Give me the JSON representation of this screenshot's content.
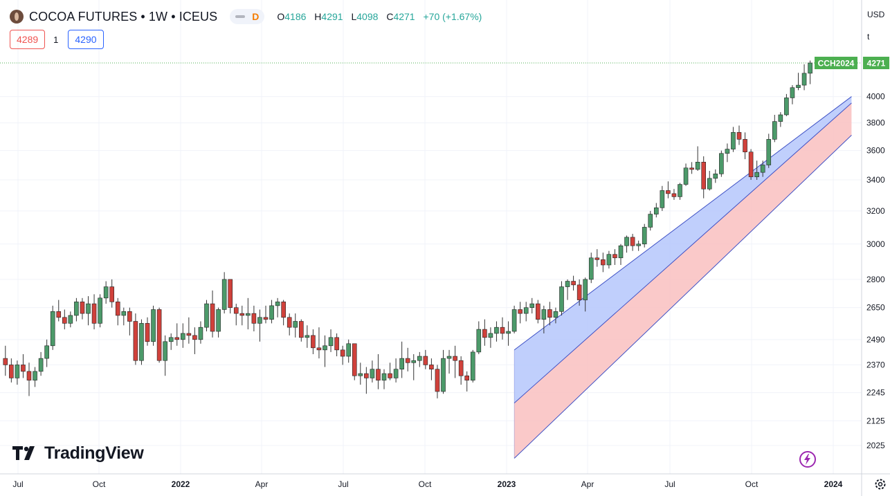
{
  "header": {
    "title": "COCOA FUTURES • 1W • ICEUS",
    "badge": "D",
    "ohlc": [
      {
        "k": "O",
        "v": "4186"
      },
      {
        "k": "H",
        "v": "4291"
      },
      {
        "k": "L",
        "v": "4098"
      },
      {
        "k": "C",
        "v": "4271"
      }
    ],
    "change": "+70 (+1.67%)"
  },
  "quote": {
    "sell": "4289",
    "qty": "1",
    "buy": "4290"
  },
  "axis_currency": "USD",
  "axis_unit": "t",
  "branding": "TradingView",
  "icons": [
    "cocoa-symbol-icon",
    "eye-toggle-icon",
    "tradingview-logo-icon",
    "lightning-icon",
    "gear-icon"
  ],
  "colors": {
    "up": "#26a69a",
    "down": "#ef5350",
    "channel_upper_fill": "#b5c7fc",
    "channel_lower_fill": "#f9c0c0",
    "channel_line": "#3f51c5",
    "last_price": "#4caf50"
  },
  "chart_data": {
    "type": "candlestick",
    "symbol": "CCH2024",
    "last_price": 4271,
    "y_ticks": [
      2025,
      2125,
      2245,
      2370,
      2490,
      2650,
      2800,
      3000,
      3200,
      3400,
      3600,
      3800,
      4000
    ],
    "x_ticks": [
      "Jul",
      "Oct",
      "2022",
      "Apr",
      "Jul",
      "Oct",
      "2023",
      "Apr",
      "Jul",
      "Oct",
      "2024"
    ],
    "ylim": [
      1960,
      4400
    ],
    "y_scale": "log",
    "grid": true,
    "candles": [
      [
        2400,
        2460,
        2320,
        2370
      ],
      [
        2370,
        2400,
        2290,
        2310
      ],
      [
        2310,
        2390,
        2280,
        2370
      ],
      [
        2370,
        2420,
        2310,
        2340
      ],
      [
        2340,
        2380,
        2230,
        2300
      ],
      [
        2300,
        2360,
        2270,
        2340
      ],
      [
        2340,
        2430,
        2320,
        2400
      ],
      [
        2400,
        2490,
        2360,
        2460
      ],
      [
        2460,
        2660,
        2440,
        2630
      ],
      [
        2630,
        2690,
        2580,
        2600
      ],
      [
        2600,
        2640,
        2540,
        2570
      ],
      [
        2570,
        2630,
        2550,
        2610
      ],
      [
        2610,
        2700,
        2580,
        2680
      ],
      [
        2680,
        2700,
        2590,
        2620
      ],
      [
        2620,
        2710,
        2560,
        2670
      ],
      [
        2670,
        2720,
        2540,
        2570
      ],
      [
        2570,
        2720,
        2550,
        2700
      ],
      [
        2700,
        2790,
        2670,
        2760
      ],
      [
        2760,
        2800,
        2650,
        2680
      ],
      [
        2680,
        2700,
        2560,
        2610
      ],
      [
        2610,
        2650,
        2560,
        2630
      ],
      [
        2630,
        2650,
        2510,
        2580
      ],
      [
        2580,
        2620,
        2370,
        2390
      ],
      [
        2390,
        2590,
        2370,
        2570
      ],
      [
        2570,
        2600,
        2460,
        2480
      ],
      [
        2480,
        2660,
        2460,
        2640
      ],
      [
        2640,
        2650,
        2380,
        2390
      ],
      [
        2390,
        2510,
        2320,
        2480
      ],
      [
        2480,
        2520,
        2440,
        2500
      ],
      [
        2500,
        2570,
        2460,
        2490
      ],
      [
        2490,
        2570,
        2450,
        2520
      ],
      [
        2520,
        2600,
        2470,
        2510
      ],
      [
        2510,
        2550,
        2420,
        2490
      ],
      [
        2490,
        2580,
        2470,
        2550
      ],
      [
        2550,
        2690,
        2530,
        2670
      ],
      [
        2670,
        2740,
        2500,
        2530
      ],
      [
        2530,
        2650,
        2500,
        2640
      ],
      [
        2640,
        2840,
        2620,
        2800
      ],
      [
        2800,
        2800,
        2620,
        2650
      ],
      [
        2650,
        2670,
        2560,
        2620
      ],
      [
        2620,
        2660,
        2560,
        2610
      ],
      [
        2610,
        2700,
        2540,
        2620
      ],
      [
        2620,
        2660,
        2530,
        2570
      ],
      [
        2570,
        2640,
        2480,
        2600
      ],
      [
        2600,
        2660,
        2570,
        2590
      ],
      [
        2590,
        2690,
        2570,
        2660
      ],
      [
        2660,
        2700,
        2600,
        2680
      ],
      [
        2680,
        2690,
        2560,
        2600
      ],
      [
        2600,
        2620,
        2510,
        2550
      ],
      [
        2550,
        2620,
        2500,
        2580
      ],
      [
        2580,
        2590,
        2480,
        2500
      ],
      [
        2500,
        2560,
        2450,
        2510
      ],
      [
        2510,
        2540,
        2420,
        2450
      ],
      [
        2450,
        2550,
        2400,
        2440
      ],
      [
        2440,
        2510,
        2360,
        2460
      ],
      [
        2460,
        2540,
        2430,
        2500
      ],
      [
        2500,
        2520,
        2410,
        2440
      ],
      [
        2440,
        2460,
        2370,
        2410
      ],
      [
        2410,
        2490,
        2380,
        2470
      ],
      [
        2470,
        2470,
        2300,
        2320
      ],
      [
        2320,
        2380,
        2280,
        2330
      ],
      [
        2330,
        2360,
        2240,
        2310
      ],
      [
        2310,
        2390,
        2290,
        2350
      ],
      [
        2350,
        2420,
        2260,
        2300
      ],
      [
        2300,
        2350,
        2260,
        2330
      ],
      [
        2330,
        2380,
        2300,
        2310
      ],
      [
        2310,
        2400,
        2290,
        2350
      ],
      [
        2350,
        2480,
        2310,
        2400
      ],
      [
        2400,
        2450,
        2340,
        2380
      ],
      [
        2380,
        2420,
        2300,
        2390
      ],
      [
        2390,
        2430,
        2360,
        2410
      ],
      [
        2410,
        2440,
        2350,
        2370
      ],
      [
        2370,
        2400,
        2300,
        2350
      ],
      [
        2350,
        2370,
        2220,
        2250
      ],
      [
        2250,
        2440,
        2240,
        2400
      ],
      [
        2400,
        2440,
        2330,
        2410
      ],
      [
        2410,
        2460,
        2310,
        2390
      ],
      [
        2390,
        2410,
        2280,
        2320
      ],
      [
        2320,
        2340,
        2250,
        2300
      ],
      [
        2300,
        2440,
        2290,
        2430
      ],
      [
        2430,
        2580,
        2420,
        2540
      ],
      [
        2540,
        2590,
        2460,
        2500
      ],
      [
        2500,
        2550,
        2450,
        2520
      ],
      [
        2520,
        2580,
        2480,
        2550
      ],
      [
        2550,
        2600,
        2490,
        2520
      ],
      [
        2520,
        2580,
        2460,
        2530
      ],
      [
        2530,
        2660,
        2520,
        2640
      ],
      [
        2640,
        2680,
        2570,
        2620
      ],
      [
        2620,
        2680,
        2580,
        2650
      ],
      [
        2650,
        2700,
        2620,
        2670
      ],
      [
        2670,
        2690,
        2570,
        2590
      ],
      [
        2590,
        2660,
        2520,
        2640
      ],
      [
        2640,
        2680,
        2560,
        2600
      ],
      [
        2600,
        2650,
        2570,
        2630
      ],
      [
        2630,
        2790,
        2610,
        2760
      ],
      [
        2760,
        2800,
        2690,
        2790
      ],
      [
        2790,
        2820,
        2740,
        2770
      ],
      [
        2770,
        2800,
        2660,
        2690
      ],
      [
        2690,
        2810,
        2630,
        2800
      ],
      [
        2800,
        2950,
        2780,
        2920
      ],
      [
        2920,
        2970,
        2870,
        2910
      ],
      [
        2910,
        2950,
        2840,
        2880
      ],
      [
        2880,
        2960,
        2860,
        2940
      ],
      [
        2940,
        2970,
        2880,
        2920
      ],
      [
        2920,
        3000,
        2880,
        2990
      ],
      [
        2990,
        3050,
        2950,
        3040
      ],
      [
        3040,
        3060,
        2960,
        2990
      ],
      [
        2990,
        3020,
        2960,
        3000
      ],
      [
        3000,
        3120,
        2980,
        3100
      ],
      [
        3100,
        3200,
        3080,
        3180
      ],
      [
        3180,
        3250,
        3160,
        3220
      ],
      [
        3220,
        3360,
        3200,
        3330
      ],
      [
        3330,
        3390,
        3280,
        3310
      ],
      [
        3310,
        3340,
        3270,
        3290
      ],
      [
        3290,
        3380,
        3270,
        3370
      ],
      [
        3370,
        3510,
        3360,
        3480
      ],
      [
        3480,
        3520,
        3440,
        3470
      ],
      [
        3470,
        3630,
        3460,
        3520
      ],
      [
        3520,
        3560,
        3280,
        3340
      ],
      [
        3340,
        3460,
        3330,
        3410
      ],
      [
        3410,
        3470,
        3380,
        3440
      ],
      [
        3440,
        3600,
        3420,
        3580
      ],
      [
        3580,
        3650,
        3520,
        3610
      ],
      [
        3610,
        3770,
        3590,
        3730
      ],
      [
        3730,
        3780,
        3640,
        3680
      ],
      [
        3680,
        3730,
        3540,
        3590
      ],
      [
        3590,
        3610,
        3400,
        3420
      ],
      [
        3420,
        3530,
        3400,
        3450
      ],
      [
        3450,
        3530,
        3420,
        3500
      ],
      [
        3500,
        3720,
        3480,
        3680
      ],
      [
        3680,
        3860,
        3660,
        3810
      ],
      [
        3810,
        3880,
        3770,
        3860
      ],
      [
        3860,
        4020,
        3850,
        3990
      ],
      [
        3990,
        4090,
        3940,
        4070
      ],
      [
        4070,
        4190,
        4050,
        4090
      ],
      [
        4090,
        4260,
        4050,
        4186
      ],
      [
        4186,
        4291,
        4098,
        4271
      ]
    ],
    "channel": {
      "upper_line": [
        [
          86,
          2440
        ],
        [
          143,
          4000
        ]
      ],
      "middle_line": [
        [
          86,
          2200
        ],
        [
          143,
          3950
        ]
      ],
      "lower_line": [
        [
          86,
          1975
        ],
        [
          143,
          3710
        ]
      ]
    }
  }
}
